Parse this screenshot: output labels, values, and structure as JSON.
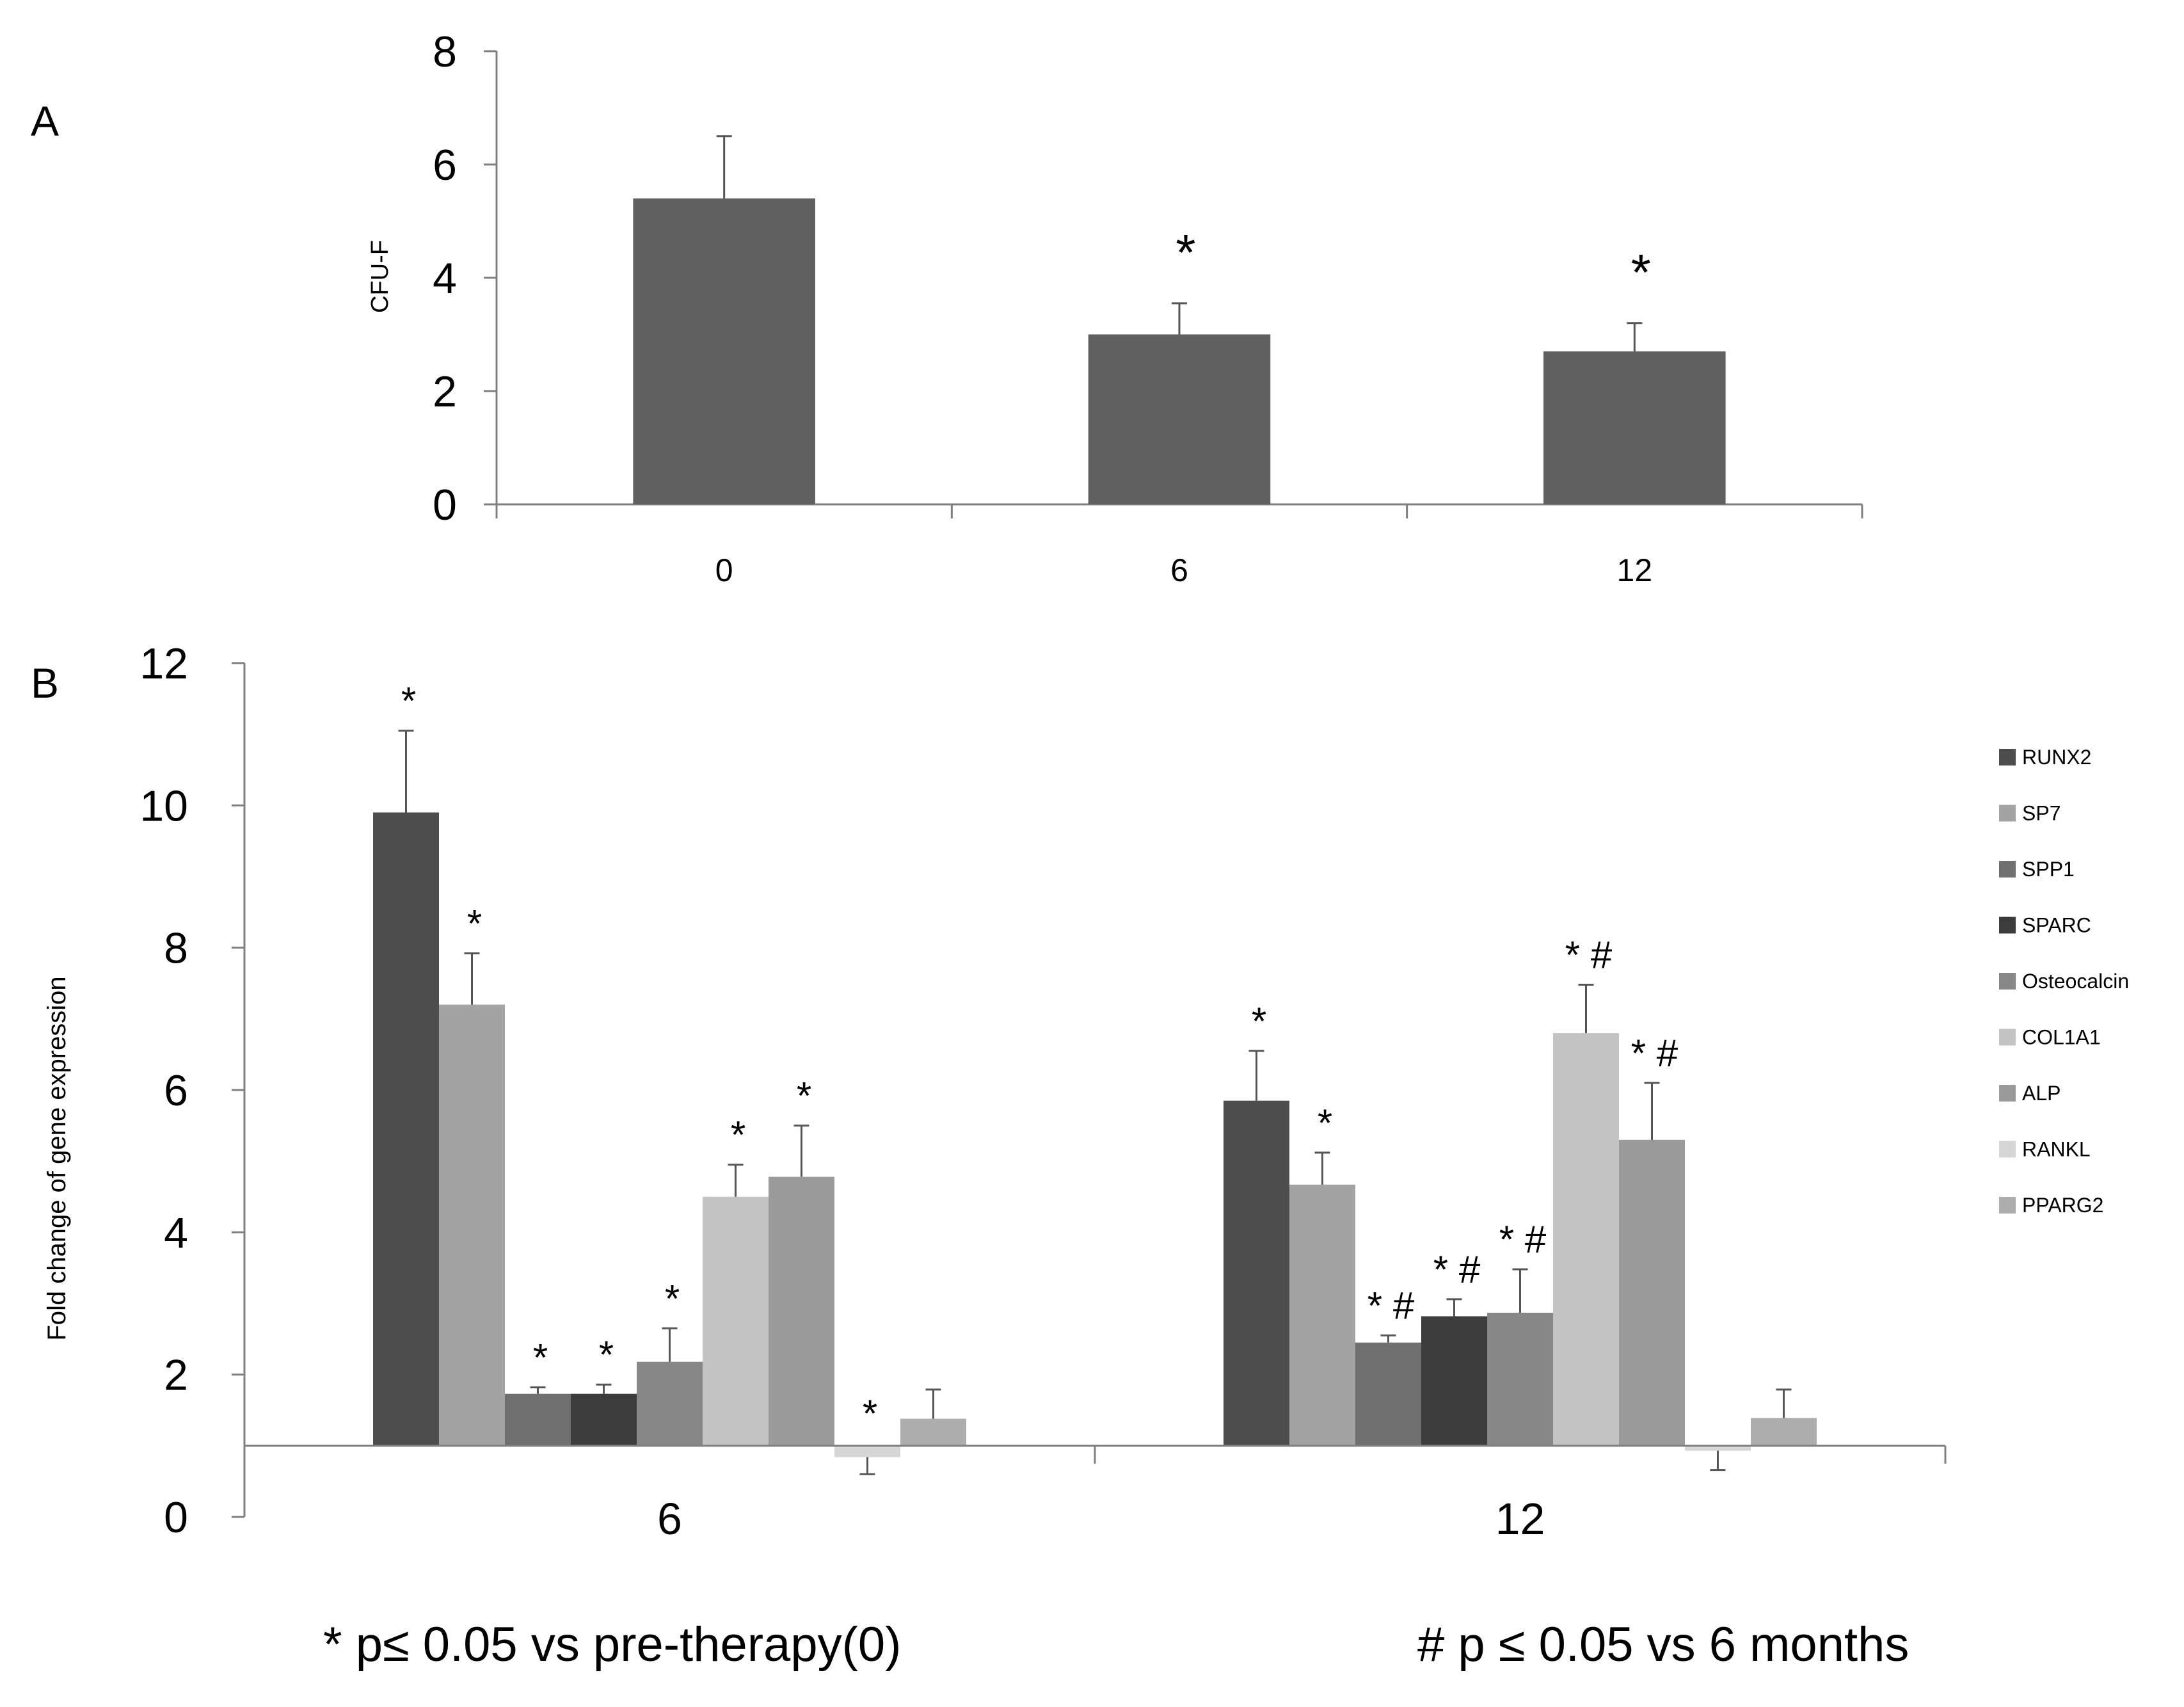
{
  "panels": {
    "a_label": "A",
    "b_label": "B"
  },
  "footnotes": {
    "star": "* p≤ 0.05 vs pre-therapy(0)",
    "hash": "# p ≤ 0.05 vs 6 months"
  },
  "chart_data": [
    {
      "panel": "A",
      "type": "bar",
      "ylabel": "CFU-F",
      "xlabel": "",
      "ylim": [
        0,
        8
      ],
      "yticks": [
        "0",
        "2",
        "4",
        "6",
        "8"
      ],
      "categories": [
        "0",
        "6",
        "12"
      ],
      "values": [
        5.4,
        3.0,
        2.7
      ],
      "errors": [
        1.1,
        0.55,
        0.5
      ],
      "significance": [
        "",
        "*",
        "*"
      ],
      "colors": {
        "bar": "#606060"
      },
      "grid": false,
      "legend": "none"
    },
    {
      "panel": "B",
      "type": "bar",
      "ylabel": "Fold change of gene expression",
      "xlabel": "",
      "ylim": [
        0,
        12
      ],
      "yticks": [
        "0",
        "2",
        "4",
        "6",
        "8",
        "10",
        "12"
      ],
      "baseline": 1,
      "categories": [
        "6",
        "12"
      ],
      "series": [
        {
          "name": "RUNX2",
          "color": "#4d4d4d",
          "values": [
            9.9,
            5.85
          ],
          "errors": [
            1.15,
            0.7
          ],
          "significance": [
            "*",
            "*"
          ]
        },
        {
          "name": "SP7",
          "color": "#a3a3a3",
          "values": [
            7.2,
            4.67
          ],
          "errors": [
            0.72,
            0.45
          ],
          "significance": [
            "*",
            "*"
          ]
        },
        {
          "name": "SPP1",
          "color": "#6f6f6f",
          "values": [
            1.73,
            2.45
          ],
          "errors": [
            0.09,
            0.1
          ],
          "significance": [
            "*",
            "* #"
          ]
        },
        {
          "name": "SPARC",
          "color": "#3c3c3c",
          "values": [
            1.73,
            2.82
          ],
          "errors": [
            0.13,
            0.24
          ],
          "significance": [
            "*",
            "* #"
          ]
        },
        {
          "name": "Osteocalcin",
          "color": "#878787",
          "values": [
            2.18,
            2.87
          ],
          "errors": [
            0.47,
            0.61
          ],
          "significance": [
            "*",
            "* #"
          ]
        },
        {
          "name": "COL1A1",
          "color": "#c4c4c4",
          "values": [
            4.5,
            6.8
          ],
          "errors": [
            0.45,
            0.68
          ],
          "significance": [
            "*",
            "* #"
          ]
        },
        {
          "name": "ALP",
          "color": "#9a9a9a",
          "values": [
            4.78,
            5.3
          ],
          "errors": [
            0.72,
            0.8
          ],
          "significance": [
            "*",
            "* #"
          ]
        },
        {
          "name": "RANKL",
          "color": "#d6d6d6",
          "values": [
            0.84,
            0.93
          ],
          "errors": [
            0.24,
            0.27
          ],
          "significance": [
            "*",
            ""
          ]
        },
        {
          "name": "PPARG2",
          "color": "#adadad",
          "values": [
            1.38,
            1.39
          ],
          "errors": [
            0.41,
            0.4
          ],
          "significance": [
            "",
            ""
          ]
        }
      ],
      "grid": false,
      "legend": "right"
    }
  ]
}
